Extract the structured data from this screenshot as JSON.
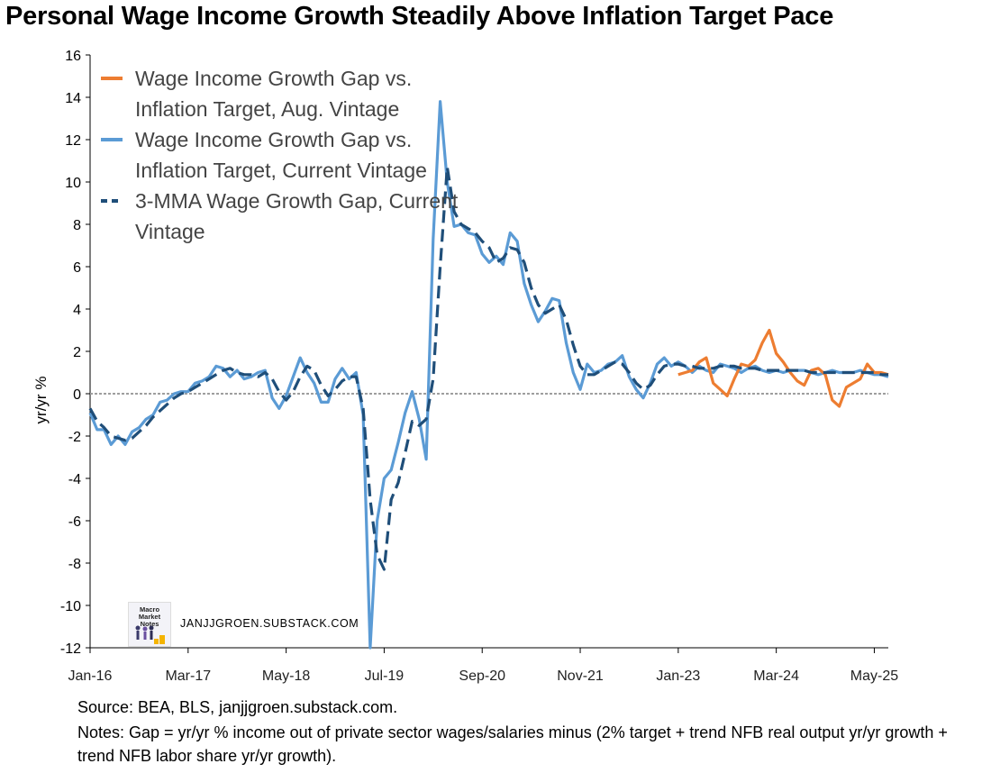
{
  "title": "Personal Wage Income Growth Steadily Above Inflation Target Pace",
  "ylabel": "yr/yr %",
  "source": "Source: BEA, BLS, janjjgroen.substack.com.",
  "notes": "Notes: Gap = yr/yr % income out of private sector wages/salaries minus (2% target + trend NFB real output yr/yr growth + trend NFB labor share yr/yr growth).",
  "watermark": "JANJJGROEN.SUBSTACK.COM",
  "logo_text": "Macro Market Notes",
  "legend": [
    {
      "label": "Wage Income Growth Gap vs.\nInflation Target, Aug. Vintage",
      "color": "#ED7D31",
      "dash": false
    },
    {
      "label": "Wage Income Growth Gap vs.\nInflation Target, Current Vintage",
      "color": "#5B9BD5",
      "dash": false
    },
    {
      "label": "3-MMA Wage Growth Gap, Current\nVintage",
      "color": "#1F4E79",
      "dash": true
    }
  ],
  "chart_data": {
    "type": "line",
    "title": "Personal Wage Income Growth Steadily Above Inflation Target Pace",
    "xlabel": "",
    "ylabel": "yr/yr %",
    "ylim": [
      -12,
      16
    ],
    "yticks": [
      -12,
      -10,
      -8,
      -6,
      -4,
      -2,
      0,
      2,
      4,
      6,
      8,
      10,
      12,
      14,
      16
    ],
    "xtick_labels": [
      "Jan-16",
      "Mar-17",
      "May-18",
      "Jul-19",
      "Sep-20",
      "Nov-21",
      "Jan-23",
      "Mar-24",
      "May-25"
    ],
    "start": "Jan-16",
    "reference_line": 0,
    "legend_position": "top-left",
    "grid": false,
    "series": [
      {
        "name": "Wage Income Growth Gap vs. Inflation Target, Aug. Vintage",
        "color": "#ED7D31",
        "style": "solid",
        "x": [
          "Jan-23",
          "Feb-23",
          "Mar-23",
          "Apr-23",
          "May-23",
          "Jun-23",
          "Jul-23",
          "Aug-23",
          "Sep-23",
          "Oct-23",
          "Nov-23",
          "Dec-23",
          "Jan-24",
          "Feb-24",
          "Mar-24",
          "Apr-24",
          "May-24",
          "Jun-24",
          "Jul-24",
          "Aug-24",
          "Sep-24",
          "Oct-24",
          "Nov-24",
          "Dec-24",
          "Jan-25",
          "Feb-25",
          "Mar-25",
          "Apr-25",
          "May-25",
          "Jun-25",
          "Jul-25"
        ],
        "values": [
          0.9,
          1.0,
          1.1,
          1.5,
          1.7,
          0.5,
          0.2,
          -0.1,
          0.7,
          1.4,
          1.3,
          1.6,
          2.4,
          3.0,
          1.9,
          1.5,
          1.0,
          0.6,
          0.4,
          1.1,
          1.2,
          0.9,
          -0.3,
          -0.6,
          0.3,
          0.5,
          0.7,
          1.4,
          1.0,
          1.0,
          0.9
        ]
      },
      {
        "name": "Wage Income Growth Gap vs. Inflation Target, Current Vintage",
        "color": "#5B9BD5",
        "style": "solid",
        "x": [
          "Jan-16",
          "Feb-16",
          "Mar-16",
          "Apr-16",
          "May-16",
          "Jun-16",
          "Jul-16",
          "Aug-16",
          "Sep-16",
          "Oct-16",
          "Nov-16",
          "Dec-16",
          "Jan-17",
          "Feb-17",
          "Mar-17",
          "Apr-17",
          "May-17",
          "Jun-17",
          "Jul-17",
          "Aug-17",
          "Sep-17",
          "Oct-17",
          "Nov-17",
          "Dec-17",
          "Jan-18",
          "Feb-18",
          "Mar-18",
          "Apr-18",
          "May-18",
          "Jun-18",
          "Jul-18",
          "Aug-18",
          "Sep-18",
          "Oct-18",
          "Nov-18",
          "Dec-18",
          "Jan-19",
          "Feb-19",
          "Mar-19",
          "Apr-19",
          "May-19",
          "Jun-19",
          "Jul-19",
          "Aug-19",
          "Sep-19",
          "Oct-19",
          "Nov-19",
          "Dec-19",
          "Jan-20",
          "Feb-20",
          "Mar-20",
          "Apr-20",
          "May-20",
          "Jun-20",
          "Jul-20",
          "Aug-20",
          "Sep-20",
          "Oct-20",
          "Nov-20",
          "Dec-20",
          "Jan-21",
          "Feb-21",
          "Mar-21",
          "Apr-21",
          "May-21",
          "Jun-21",
          "Jul-21",
          "Aug-21",
          "Sep-21",
          "Oct-21",
          "Nov-21",
          "Dec-21",
          "Jan-22",
          "Feb-22",
          "Mar-22",
          "Apr-22",
          "May-22",
          "Jun-22",
          "Jul-22",
          "Aug-22",
          "Sep-22",
          "Oct-22",
          "Nov-22",
          "Dec-22",
          "Jan-23",
          "Feb-23",
          "Mar-23",
          "Apr-23",
          "May-23",
          "Jun-23",
          "Jul-23",
          "Aug-23",
          "Sep-23",
          "Oct-23",
          "Nov-23",
          "Dec-23",
          "Jan-24",
          "Feb-24",
          "Mar-24",
          "Apr-24",
          "May-24",
          "Jun-24",
          "Jul-24",
          "Aug-24",
          "Sep-24",
          "Oct-24",
          "Nov-24",
          "Dec-24",
          "Jan-25",
          "Feb-25",
          "Mar-25",
          "Apr-25",
          "May-25",
          "Jun-25",
          "Jul-25"
        ],
        "values": [
          -0.9,
          -1.7,
          -1.7,
          -2.4,
          -2.0,
          -2.4,
          -1.8,
          -1.6,
          -1.2,
          -1.0,
          -0.4,
          -0.3,
          0.0,
          0.1,
          0.1,
          0.5,
          0.6,
          0.8,
          1.3,
          1.2,
          0.8,
          1.1,
          0.7,
          0.8,
          1.0,
          1.1,
          -0.2,
          -0.7,
          -0.1,
          0.8,
          1.7,
          1.0,
          0.5,
          -0.4,
          -0.4,
          0.7,
          1.2,
          0.7,
          1.0,
          -1.0,
          -12.0,
          -6.0,
          -4.0,
          -3.6,
          -2.3,
          -0.9,
          0.1,
          -1.2,
          -3.1,
          7.3,
          13.8,
          10.0,
          7.9,
          8.0,
          7.6,
          7.5,
          6.6,
          6.2,
          6.5,
          6.1,
          7.6,
          7.2,
          5.2,
          4.2,
          3.4,
          3.9,
          4.5,
          4.4,
          2.4,
          1.0,
          0.2,
          1.4,
          1.0,
          1.1,
          1.4,
          1.5,
          1.8,
          0.8,
          0.2,
          -0.2,
          0.5,
          1.4,
          1.7,
          1.3,
          1.5,
          1.3,
          1.0,
          1.3,
          1.1,
          1.0,
          1.4,
          1.3,
          1.2,
          1.0,
          1.2,
          1.3,
          1.1,
          1.0,
          1.1,
          1.0,
          1.1,
          1.1,
          1.1,
          1.0,
          0.9,
          1.0,
          1.1,
          1.0,
          1.0,
          1.0,
          1.1,
          1.0,
          0.9,
          0.9,
          0.8
        ]
      },
      {
        "name": "3-MMA Wage Growth Gap, Current Vintage",
        "color": "#1F4E79",
        "style": "dashed",
        "x": [
          "Jan-16",
          "Feb-16",
          "Mar-16",
          "Apr-16",
          "May-16",
          "Jun-16",
          "Jul-16",
          "Aug-16",
          "Sep-16",
          "Oct-16",
          "Nov-16",
          "Dec-16",
          "Jan-17",
          "Feb-17",
          "Mar-17",
          "Apr-17",
          "May-17",
          "Jun-17",
          "Jul-17",
          "Aug-17",
          "Sep-17",
          "Oct-17",
          "Nov-17",
          "Dec-17",
          "Jan-18",
          "Feb-18",
          "Mar-18",
          "Apr-18",
          "May-18",
          "Jun-18",
          "Jul-18",
          "Aug-18",
          "Sep-18",
          "Oct-18",
          "Nov-18",
          "Dec-18",
          "Jan-19",
          "Feb-19",
          "Mar-19",
          "Apr-19",
          "May-19",
          "Jun-19",
          "Jul-19",
          "Aug-19",
          "Sep-19",
          "Oct-19",
          "Nov-19",
          "Dec-19",
          "Jan-20",
          "Feb-20",
          "Mar-20",
          "Apr-20",
          "May-20",
          "Jun-20",
          "Jul-20",
          "Aug-20",
          "Sep-20",
          "Oct-20",
          "Nov-20",
          "Dec-20",
          "Jan-21",
          "Feb-21",
          "Mar-21",
          "Apr-21",
          "May-21",
          "Jun-21",
          "Jul-21",
          "Aug-21",
          "Sep-21",
          "Oct-21",
          "Nov-21",
          "Dec-21",
          "Jan-22",
          "Feb-22",
          "Mar-22",
          "Apr-22",
          "May-22",
          "Jun-22",
          "Jul-22",
          "Aug-22",
          "Sep-22",
          "Oct-22",
          "Nov-22",
          "Dec-22",
          "Jan-23",
          "Feb-23",
          "Mar-23",
          "Apr-23",
          "May-23",
          "Jun-23",
          "Jul-23",
          "Aug-23",
          "Sep-23",
          "Oct-23",
          "Nov-23",
          "Dec-23",
          "Jan-24",
          "Feb-24",
          "Mar-24",
          "Apr-24",
          "May-24",
          "Jun-24",
          "Jul-24",
          "Aug-24",
          "Sep-24",
          "Oct-24",
          "Nov-24",
          "Dec-24",
          "Jan-25",
          "Feb-25",
          "Mar-25",
          "Apr-25",
          "May-25",
          "Jun-25",
          "Jul-25"
        ],
        "values": [
          -0.7,
          -1.3,
          -1.6,
          -2.0,
          -2.1,
          -2.2,
          -2.1,
          -1.8,
          -1.5,
          -1.1,
          -0.8,
          -0.5,
          -0.2,
          0.0,
          0.1,
          0.3,
          0.5,
          0.7,
          0.9,
          1.1,
          1.2,
          1.0,
          0.9,
          0.9,
          0.8,
          1.0,
          0.7,
          0.1,
          -0.3,
          0.1,
          0.8,
          1.3,
          1.1,
          0.4,
          -0.1,
          0.2,
          0.6,
          0.8,
          0.8,
          -0.7,
          -5.0,
          -7.6,
          -8.3,
          -5.0,
          -4.2,
          -2.8,
          -1.3,
          -1.5,
          -1.2,
          0.7,
          6.0,
          10.7,
          8.6,
          8.0,
          7.8,
          7.6,
          7.2,
          6.9,
          6.2,
          6.4,
          6.9,
          6.8,
          6.2,
          5.0,
          4.2,
          3.8,
          4.0,
          4.2,
          3.5,
          2.3,
          1.3,
          0.9,
          0.9,
          1.1,
          1.3,
          1.5,
          1.4,
          1.0,
          0.5,
          0.2,
          0.4,
          0.9,
          1.3,
          1.4,
          1.4,
          1.3,
          1.3,
          1.2,
          1.2,
          1.2,
          1.3,
          1.3,
          1.3,
          1.2,
          1.2,
          1.2,
          1.1,
          1.1,
          1.1,
          1.1,
          1.1,
          1.1,
          1.1,
          1.0,
          1.0,
          1.0,
          1.0,
          1.0,
          1.0,
          1.0,
          1.0,
          1.0,
          1.0,
          0.9,
          0.9
        ]
      }
    ]
  }
}
